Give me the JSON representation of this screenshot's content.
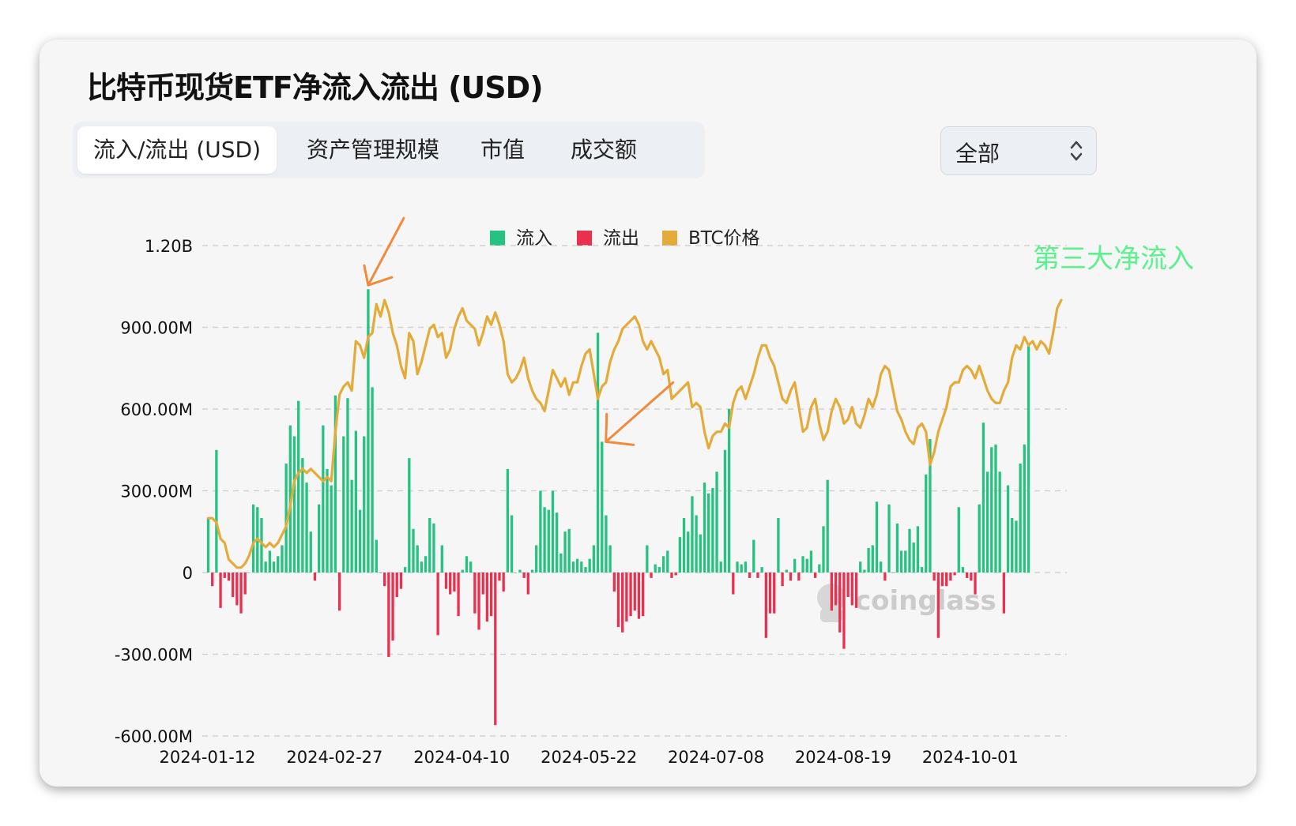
{
  "title": "比特币现货ETF净流入流出 (USD)",
  "tabs": [
    {
      "label": "流入/流出 (USD)",
      "active": true
    },
    {
      "label": "资产管理规模",
      "active": false
    },
    {
      "label": "市值",
      "active": false
    },
    {
      "label": "成交额",
      "active": false
    }
  ],
  "range_select": {
    "value": "全部"
  },
  "legend": [
    {
      "label": "流入",
      "color": "#26c281"
    },
    {
      "label": "流出",
      "color": "#e8304f"
    },
    {
      "label": "BTC价格",
      "color": "#e3ac3a"
    }
  ],
  "watermark": "coinglass",
  "annotation": {
    "text": "第三大净流入",
    "color": "#5cf08e"
  },
  "arrow_color": "#f08a3c",
  "chart_data": {
    "type": "bar",
    "y_tick_labels": [
      "-600.00M",
      "-300.00M",
      "0",
      "300.00M",
      "600.00M",
      "900.00M",
      "1.20B"
    ],
    "y_ticks": [
      -600,
      -300,
      0,
      300,
      600,
      900,
      1200
    ],
    "ylim": [
      -600,
      1200
    ],
    "x_tick_labels": [
      "2024-01-12",
      "2024-02-27",
      "2024-04-10",
      "2024-05-22",
      "2024-07-08",
      "2024-08-19",
      "2024-10-01"
    ],
    "x_tick_positions": [
      0,
      31,
      62,
      93,
      124,
      155,
      186
    ],
    "grid": true,
    "legend_position": "top-center",
    "series": [
      {
        "name": "流入/流出",
        "positive_color": "#26c281",
        "negative_color": "#e8304f",
        "values": [
          200,
          -50,
          450,
          -130,
          -20,
          -30,
          -90,
          -120,
          -150,
          -80,
          0,
          250,
          240,
          200,
          40,
          80,
          40,
          60,
          100,
          400,
          540,
          500,
          630,
          420,
          330,
          150,
          -30,
          250,
          540,
          380,
          320,
          650,
          -140,
          500,
          640,
          340,
          520,
          230,
          500,
          1040,
          680,
          120,
          0,
          -50,
          -310,
          -250,
          -90,
          -60,
          20,
          420,
          160,
          100,
          40,
          60,
          200,
          180,
          -230,
          100,
          -60,
          -80,
          -70,
          -160,
          10,
          60,
          40,
          -150,
          -210,
          -80,
          -180,
          -160,
          -560,
          -30,
          -70,
          380,
          210,
          0,
          10,
          -20,
          -80,
          10,
          100,
          300,
          240,
          230,
          300,
          220,
          70,
          150,
          160,
          40,
          50,
          40,
          20,
          50,
          100,
          880,
          480,
          210,
          100,
          -70,
          -200,
          -220,
          -180,
          -160,
          -140,
          -170,
          -160,
          100,
          -20,
          30,
          20,
          60,
          80,
          -20,
          -10,
          130,
          200,
          150,
          280,
          210,
          140,
          330,
          290,
          310,
          370,
          40,
          450,
          600,
          -80,
          40,
          30,
          40,
          -20,
          120,
          -20,
          20,
          -240,
          -150,
          -150,
          200,
          -50,
          10,
          -30,
          50,
          -30,
          60,
          50,
          80,
          -20,
          30,
          170,
          340,
          -140,
          -120,
          -220,
          -280,
          -90,
          -120,
          -130,
          40,
          10,
          90,
          100,
          260,
          40,
          -30,
          250,
          0,
          180,
          80,
          80,
          160,
          110,
          170,
          20,
          360,
          490,
          -30,
          -240,
          -50,
          -50,
          -30,
          -10,
          240,
          20,
          -20,
          -30,
          -80,
          250,
          550,
          370,
          460,
          470,
          370,
          -150,
          320,
          200,
          190,
          400,
          470,
          830
        ],
        "highlight_bars": [
          39,
          96,
          210
        ]
      },
      {
        "name": "BTC价格",
        "color": "#e3ac3a",
        "axis": "hidden",
        "values": [
          46500,
          46500,
          46000,
          44000,
          43500,
          41500,
          41000,
          40500,
          40500,
          41000,
          42000,
          43500,
          44000,
          43500,
          43000,
          43500,
          43000,
          43500,
          44500,
          45500,
          48000,
          51000,
          52000,
          52500,
          52000,
          52500,
          52000,
          51500,
          51000,
          51500,
          51000,
          57000,
          61500,
          62500,
          63000,
          62000,
          68000,
          67500,
          66000,
          68500,
          69000,
          72500,
          71000,
          73000,
          71500,
          69000,
          67500,
          65000,
          63500,
          69000,
          68000,
          64000,
          65500,
          67500,
          69500,
          70000,
          68500,
          69000,
          66000,
          67000,
          69500,
          71000,
          72000,
          70500,
          70000,
          69500,
          67500,
          69000,
          71000,
          70000,
          71500,
          70000,
          68000,
          64000,
          63000,
          63500,
          64500,
          66000,
          63500,
          62000,
          61000,
          60500,
          59500,
          62000,
          64500,
          63500,
          62500,
          63500,
          61500,
          63000,
          63000,
          65000,
          66500,
          67000,
          64000,
          61000,
          62500,
          63000,
          65500,
          67000,
          68000,
          69500,
          70000,
          70500,
          71000,
          70000,
          68000,
          67000,
          68000,
          67000,
          66000,
          64000,
          64500,
          61000,
          61500,
          62000,
          62500,
          63000,
          60000,
          60500,
          60000,
          57000,
          55000,
          56500,
          57000,
          57000,
          58000,
          57500,
          60500,
          62000,
          62500,
          61000,
          62500,
          64000,
          66000,
          67500,
          67500,
          66000,
          65000,
          63000,
          61000,
          60500,
          62000,
          63000,
          60000,
          57000,
          57500,
          60000,
          61000,
          58000,
          56000,
          57000,
          59500,
          61000,
          60000,
          58000,
          58500,
          60000,
          58000,
          57500,
          59000,
          61000,
          60000,
          61500,
          64000,
          65000,
          64500,
          62000,
          59500,
          58500,
          57000,
          56000,
          55500,
          57500,
          58000,
          57000,
          53000,
          54500,
          57000,
          58500,
          60000,
          62500,
          63000,
          63000,
          64500,
          65000,
          64500,
          63500,
          65000,
          63500,
          62000,
          61000,
          60500,
          60500,
          62000,
          63000,
          66000,
          67500,
          67000,
          68500,
          67500,
          68000,
          67000,
          68000,
          67500,
          66500,
          69000,
          72000,
          73000
        ]
      }
    ]
  }
}
